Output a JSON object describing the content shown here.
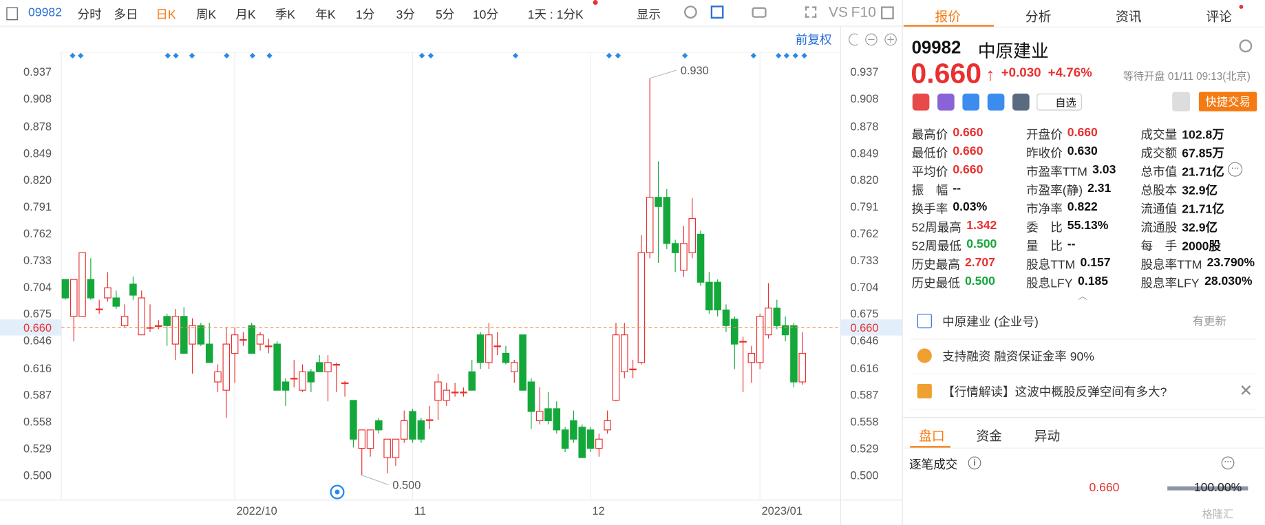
{
  "toolbar": {
    "code": "09982",
    "periods": [
      "分时",
      "多日",
      "日K",
      "周K",
      "月K",
      "季K",
      "年K",
      "1分",
      "3分",
      "5分",
      "10分"
    ],
    "active_index": 2,
    "interval": "1天 : 1分K",
    "display": "显示",
    "vs": "VS",
    "f10": "F10"
  },
  "chart_toolbar": {
    "adjust": "前复权"
  },
  "chart_data": {
    "type": "candlestick",
    "up_color": "#e93030",
    "down_color": "#14a83b",
    "ylim": [
      0.473,
      0.958
    ],
    "yticks": [
      {
        "value": 0.5,
        "label": "0.500"
      },
      0.529,
      0.558,
      0.587,
      0.616,
      0.646,
      0.675,
      0.704,
      0.733,
      0.762,
      0.791,
      {
        "value": 0.82,
        "label": "0.820"
      },
      0.849,
      0.878,
      0.908,
      0.937
    ],
    "categories": [
      null,
      null,
      null,
      null,
      null,
      null,
      null,
      null,
      null,
      null,
      null,
      null,
      null,
      null,
      null,
      null,
      null,
      null,
      null,
      null,
      "2022/10",
      null,
      null,
      null,
      null,
      null,
      null,
      null,
      null,
      null,
      null,
      null,
      null,
      null,
      null,
      null,
      null,
      null,
      null,
      null,
      null,
      "11",
      null,
      null,
      null,
      null,
      null,
      null,
      null,
      null,
      null,
      null,
      null,
      null,
      null,
      null,
      null,
      null,
      null,
      null,
      null,
      null,
      "12",
      null,
      null,
      null,
      null,
      null,
      null,
      null,
      null,
      null,
      null,
      null,
      null,
      null,
      null,
      null,
      null,
      null,
      null,
      null,
      "2023/01",
      null,
      null,
      null,
      null,
      null
    ],
    "candles": [
      [
        0.712,
        0.712,
        0.69,
        0.692
      ],
      [
        0.672,
        0.712,
        0.645,
        0.712
      ],
      [
        0.672,
        0.741,
        0.672,
        0.741
      ],
      [
        0.712,
        0.735,
        0.69,
        0.692
      ],
      [
        0.68,
        0.69,
        0.675,
        0.68
      ],
      [
        0.692,
        0.72,
        0.688,
        0.703
      ],
      [
        0.692,
        0.7,
        0.68,
        0.683
      ],
      [
        0.662,
        0.685,
        0.66,
        0.672
      ],
      [
        0.707,
        0.715,
        0.69,
        0.695
      ],
      [
        0.652,
        0.7,
        0.652,
        0.692
      ],
      [
        0.66,
        0.685,
        0.655,
        0.66
      ],
      [
        0.662,
        0.668,
        0.658,
        0.662
      ],
      [
        0.672,
        0.675,
        0.64,
        0.662
      ],
      [
        0.642,
        0.68,
        0.625,
        0.672
      ],
      [
        0.672,
        0.682,
        0.632,
        0.632
      ],
      [
        0.642,
        0.67,
        0.61,
        0.662
      ],
      [
        0.662,
        0.665,
        0.64,
        0.642
      ],
      [
        0.642,
        0.665,
        0.622,
        0.622
      ],
      [
        0.601,
        0.62,
        0.59,
        0.612
      ],
      [
        0.592,
        0.66,
        0.562,
        0.642
      ],
      [
        0.632,
        0.66,
        0.6,
        0.652
      ],
      [
        0.647,
        0.655,
        0.64,
        0.647
      ],
      [
        0.662,
        0.665,
        0.632,
        0.632
      ],
      [
        0.642,
        0.655,
        0.635,
        0.652
      ],
      [
        0.64,
        0.648,
        0.632,
        0.64
      ],
      [
        0.642,
        0.645,
        0.592,
        0.592
      ],
      [
        0.601,
        0.605,
        0.575,
        0.592
      ],
      [
        0.605,
        0.625,
        0.595,
        0.605
      ],
      [
        0.592,
        0.62,
        0.59,
        0.612
      ],
      [
        0.612,
        0.615,
        0.59,
        0.601
      ],
      [
        0.622,
        0.63,
        0.612,
        0.612
      ],
      [
        0.612,
        0.63,
        0.58,
        0.622
      ],
      [
        0.62,
        0.622,
        0.59,
        0.62
      ],
      [
        0.6,
        0.602,
        0.585,
        0.6
      ],
      [
        0.581,
        0.581,
        0.53,
        0.539
      ],
      [
        0.529,
        0.549,
        0.5,
        0.549
      ],
      [
        0.529,
        0.549,
        0.52,
        0.549
      ],
      [
        0.559,
        0.562,
        0.545,
        0.549
      ],
      [
        0.519,
        0.539,
        0.502,
        0.539
      ],
      [
        0.519,
        0.539,
        0.51,
        0.539
      ],
      [
        0.539,
        0.57,
        0.535,
        0.559
      ],
      [
        0.569,
        0.572,
        0.535,
        0.539
      ],
      [
        0.559,
        0.562,
        0.535,
        0.539
      ],
      [
        0.56,
        0.575,
        0.55,
        0.56
      ],
      [
        0.581,
        0.61,
        0.56,
        0.601
      ],
      [
        0.581,
        0.6,
        0.575,
        0.592
      ],
      [
        0.59,
        0.6,
        0.585,
        0.59
      ],
      [
        0.59,
        0.595,
        0.585,
        0.59
      ],
      [
        0.612,
        0.625,
        0.592,
        0.592
      ],
      [
        0.652,
        0.655,
        0.615,
        0.622
      ],
      [
        0.622,
        0.665,
        0.615,
        0.652
      ],
      [
        0.64,
        0.655,
        0.63,
        0.64
      ],
      [
        0.632,
        0.64,
        0.62,
        0.622
      ],
      [
        0.612,
        0.625,
        0.6,
        0.622
      ],
      [
        0.652,
        0.652,
        0.592,
        0.592
      ],
      [
        0.601,
        0.605,
        0.55,
        0.569
      ],
      [
        0.559,
        0.595,
        0.555,
        0.569
      ],
      [
        0.572,
        0.59,
        0.555,
        0.559
      ],
      [
        0.572,
        0.58,
        0.545,
        0.549
      ],
      [
        0.549,
        0.552,
        0.525,
        0.529
      ],
      [
        0.559,
        0.57,
        0.535,
        0.539
      ],
      [
        0.552,
        0.555,
        0.519,
        0.519
      ],
      [
        0.549,
        0.552,
        0.525,
        0.529
      ],
      [
        0.529,
        0.545,
        0.52,
        0.539
      ],
      [
        0.549,
        0.57,
        0.545,
        0.559
      ],
      [
        0.581,
        0.665,
        0.58,
        0.652
      ],
      [
        0.612,
        0.665,
        0.605,
        0.652
      ],
      [
        0.615,
        0.625,
        0.605,
        0.615
      ],
      [
        0.622,
        0.76,
        0.62,
        0.741
      ],
      [
        0.741,
        0.93,
        0.735,
        0.801
      ],
      [
        0.801,
        0.84,
        0.73,
        0.791
      ],
      [
        0.801,
        0.81,
        0.745,
        0.751
      ],
      [
        0.751,
        0.755,
        0.72,
        0.741
      ],
      [
        0.722,
        0.77,
        0.715,
        0.751
      ],
      [
        0.741,
        0.8,
        0.735,
        0.778
      ],
      [
        0.761,
        0.765,
        0.705,
        0.709
      ],
      [
        0.709,
        0.72,
        0.675,
        0.679
      ],
      [
        0.709,
        0.712,
        0.672,
        0.679
      ],
      [
        0.679,
        0.685,
        0.655,
        0.662
      ],
      [
        0.669,
        0.672,
        0.615,
        0.642
      ],
      [
        0.645,
        0.65,
        0.59,
        0.645
      ],
      [
        0.622,
        0.64,
        0.6,
        0.632
      ],
      [
        0.622,
        0.675,
        0.615,
        0.672
      ],
      [
        0.652,
        0.708,
        0.648,
        0.681
      ],
      [
        0.681,
        0.69,
        0.658,
        0.662
      ],
      [
        0.662,
        0.672,
        0.645,
        0.652
      ],
      [
        0.662,
        0.665,
        0.595,
        0.601
      ],
      [
        0.601,
        0.655,
        0.598,
        0.632
      ]
    ],
    "annotations": [
      {
        "kind": "high",
        "value": 0.93,
        "label": "0.930"
      },
      {
        "kind": "low",
        "value": 0.5,
        "label": "0.500"
      }
    ],
    "price_line": {
      "value": 0.66,
      "label": "0.660",
      "color": "#f08a3c"
    }
  },
  "quote_panel": {
    "tabs": [
      "报价",
      "分析",
      "资讯",
      "评论"
    ],
    "code": "09982",
    "name": "中原建业",
    "price": "0.660",
    "change": "+0.030",
    "change_pct": "+4.76%",
    "status": "等待开盘 01/11 09:13(北京)",
    "watch": "自选",
    "trade": "快捷交易",
    "stats": [
      [
        {
          "label": "最高价",
          "value": "0.660",
          "color": "#e93030"
        },
        {
          "label": "开盘价",
          "value": "0.660",
          "color": "#e93030"
        },
        {
          "label": "成交量",
          "value": "102.8万"
        }
      ],
      [
        {
          "label": "最低价",
          "value": "0.660",
          "color": "#e93030"
        },
        {
          "label": "昨收价",
          "value": "0.630"
        },
        {
          "label": "成交额",
          "value": "67.85万"
        }
      ],
      [
        {
          "label": "平均价",
          "value": "0.660",
          "color": "#e93030"
        },
        {
          "label": "市盈率TTM",
          "value": "3.03"
        },
        {
          "label": "总市值",
          "value": "21.71亿"
        }
      ],
      [
        {
          "label": "振　幅",
          "value": "--"
        },
        {
          "label": "市盈率(静)",
          "value": "2.31"
        },
        {
          "label": "总股本",
          "value": "32.9亿"
        }
      ],
      [
        {
          "label": "换手率",
          "value": "0.03%"
        },
        {
          "label": "市净率",
          "value": "0.822"
        },
        {
          "label": "流通值",
          "value": "21.71亿"
        }
      ],
      [
        {
          "label": "52周最高",
          "value": "1.342",
          "color": "#e93030"
        },
        {
          "label": "委　比",
          "value": "55.13%"
        },
        {
          "label": "流通股",
          "value": "32.9亿"
        }
      ],
      [
        {
          "label": "52周最低",
          "value": "0.500",
          "color": "#14a83b"
        },
        {
          "label": "量　比",
          "value": "--"
        },
        {
          "label": "每　手",
          "value": "2000股"
        }
      ],
      [
        {
          "label": "历史最高",
          "value": "2.707",
          "color": "#e93030"
        },
        {
          "label": "股息TTM",
          "value": "0.157"
        },
        {
          "label": "股息率TTM",
          "value": "23.790%"
        }
      ],
      [
        {
          "label": "历史最低",
          "value": "0.500",
          "color": "#14a83b"
        },
        {
          "label": "股息LFY",
          "value": "0.185"
        },
        {
          "label": "股息率LFY",
          "value": "28.030%"
        }
      ]
    ]
  },
  "links": [
    {
      "text": "中原建业 (企业号)",
      "extra": "有更新"
    },
    {
      "text": "支持融资 融资保证金率 90%"
    },
    {
      "text": "【行情解读】这波中概股反弹空间有多大?"
    }
  ],
  "sub_tabs": [
    "盘口",
    "资金",
    "异动"
  ],
  "trades": {
    "title": "逐笔成交",
    "price": "0.660",
    "ratio": "100.00%"
  },
  "watermark": "格隆汇"
}
